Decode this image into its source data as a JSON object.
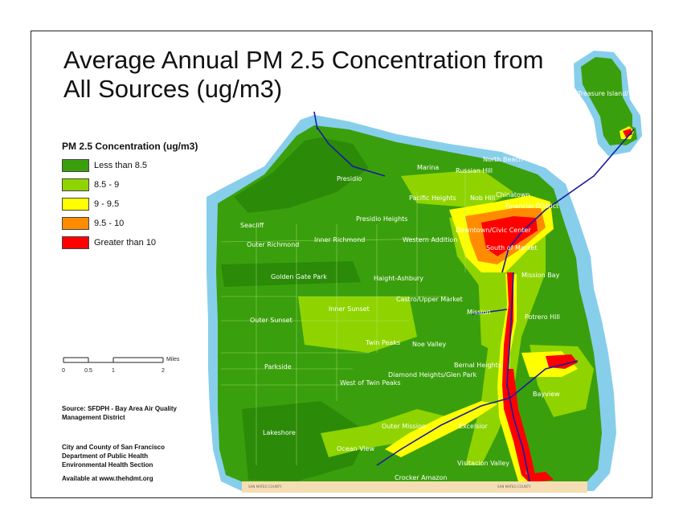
{
  "title": {
    "line1": "Average Annual PM 2.5 Concentration from",
    "line2": "All Sources (ug/m3)"
  },
  "legend": {
    "title": "PM 2.5 Concentration (ug/m3)",
    "items": [
      {
        "label": "Less than 8.5",
        "color": "#3a9f0c"
      },
      {
        "label": "8.5 - 9",
        "color": "#8fd400"
      },
      {
        "label": "9 - 9.5",
        "color": "#ffff00"
      },
      {
        "label": "9.5 - 10",
        "color": "#ff8c00"
      },
      {
        "label": "Greater than 10",
        "color": "#ff0000"
      }
    ]
  },
  "scale": {
    "unit": "Miles",
    "ticks": [
      "0",
      "0.5",
      "1",
      "2"
    ]
  },
  "source": {
    "line1": "Source:  SFDPH - Bay Area Air Quality",
    "line2": "Management District"
  },
  "credit": {
    "line1": "City and County of San Francisco",
    "line2": "Department of Public Health",
    "line3": "Environmental Health Section"
  },
  "available": "Available at www.thehdmt.org",
  "colors": {
    "water": "#87ceeb",
    "land_base": "#3a9f0c",
    "dark_green": "#2b8a08",
    "light_green": "#8fd400",
    "yellow": "#ffff00",
    "orange": "#ff8c00",
    "red": "#ff0000",
    "road": "#1a1aa0",
    "beach": "#f5deb3"
  },
  "neighborhoods": [
    "Treasure Island/YBI",
    "North Beach",
    "Marina",
    "Russian Hill",
    "Presidio",
    "Chinatown",
    "Nob Hill",
    "Pacific Heights",
    "Financial District",
    "Seacliff",
    "Presidio Heights",
    "Downtown/Civic Center",
    "Outer Richmond",
    "Inner Richmond",
    "Western Addition",
    "South of Market",
    "Golden Gate Park",
    "Haight-Ashbury",
    "Mission Bay",
    "Castro/Upper Market",
    "Inner Sunset",
    "Mission",
    "Outer Sunset",
    "Potrero Hill",
    "Twin Peaks",
    "Noe Valley",
    "Parkside",
    "Diamond Heights/Glen Park",
    "West of Twin Peaks",
    "Bernal Heights",
    "Bayview",
    "Outer Mission",
    "Excelsior",
    "Lakeshore",
    "Ocean View",
    "Visitacion Valley",
    "Crocker Amazon"
  ]
}
